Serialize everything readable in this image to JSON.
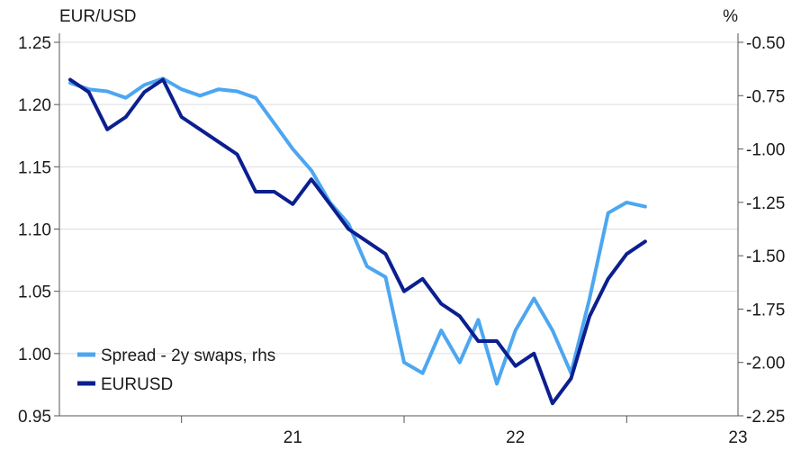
{
  "chart_data": {
    "type": "line",
    "title": "",
    "ylabel_left": "EUR/USD",
    "ylabel_right": "%",
    "x_ticks": [
      "21",
      "22",
      "23"
    ],
    "x_range": [
      "2020-07",
      "2023-07"
    ],
    "ylim_left": [
      0.95,
      1.25
    ],
    "left_ticks": [
      "1.25",
      "1.20",
      "1.15",
      "1.10",
      "1.05",
      "1.00",
      "0.95"
    ],
    "ylim_right": [
      -2.25,
      -0.5
    ],
    "right_ticks": [
      "-0.50",
      "-0.75",
      "-1.00",
      "-1.25",
      "-1.50",
      "-1.75",
      "-2.00",
      "-2.25"
    ],
    "grid": true,
    "legend_position": "bottom-left",
    "series": [
      {
        "name": "Spread - 2y swaps, rhs",
        "axis": "right",
        "color": "#4da6f0",
        "x": [
          "2020-07",
          "2020-08",
          "2020-09",
          "2020-10",
          "2020-11",
          "2020-12",
          "2021-01",
          "2021-02",
          "2021-03",
          "2021-04",
          "2021-05",
          "2021-06",
          "2021-07",
          "2021-08",
          "2021-09",
          "2021-10",
          "2021-11",
          "2021-12",
          "2022-01",
          "2022-02",
          "2022-03",
          "2022-04",
          "2022-05",
          "2022-06",
          "2022-07",
          "2022-08",
          "2022-09",
          "2022-10",
          "2022-11",
          "2022-12",
          "2023-01",
          "2023-02"
        ],
        "values": [
          -0.69,
          -0.72,
          -0.73,
          -0.76,
          -0.7,
          -0.67,
          -0.72,
          -0.75,
          -0.72,
          -0.73,
          -0.76,
          -0.88,
          -1.0,
          -1.1,
          -1.25,
          -1.35,
          -1.55,
          -1.6,
          -2.0,
          -2.05,
          -1.85,
          -2.0,
          -1.8,
          -2.1,
          -1.85,
          -1.7,
          -1.85,
          -2.05,
          -1.7,
          -1.3,
          -1.25,
          -1.27
        ]
      },
      {
        "name": "EURUSD",
        "axis": "left",
        "color": "#0b1f8f",
        "x": [
          "2020-07",
          "2020-08",
          "2020-09",
          "2020-10",
          "2020-11",
          "2020-12",
          "2021-01",
          "2021-02",
          "2021-03",
          "2021-04",
          "2021-05",
          "2021-06",
          "2021-07",
          "2021-08",
          "2021-09",
          "2021-10",
          "2021-11",
          "2021-12",
          "2022-01",
          "2022-02",
          "2022-03",
          "2022-04",
          "2022-05",
          "2022-06",
          "2022-07",
          "2022-08",
          "2022-09",
          "2022-10",
          "2022-11",
          "2022-12",
          "2023-01",
          "2023-02"
        ],
        "values": [
          1.22,
          1.21,
          1.18,
          1.19,
          1.21,
          1.22,
          1.19,
          1.18,
          1.17,
          1.16,
          1.13,
          1.13,
          1.12,
          1.14,
          1.12,
          1.1,
          1.09,
          1.08,
          1.05,
          1.06,
          1.04,
          1.03,
          1.01,
          1.01,
          0.99,
          1.0,
          0.96,
          0.98,
          1.03,
          1.06,
          1.08,
          1.09
        ]
      }
    ]
  }
}
